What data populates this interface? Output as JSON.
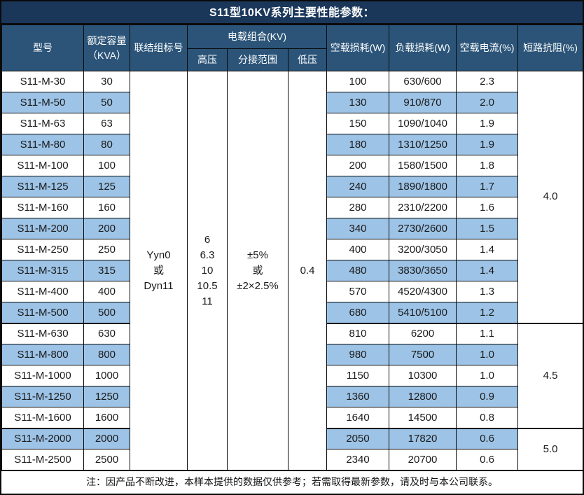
{
  "title": "S11型10KV系列主要性能参数：",
  "colors": {
    "title_bar_bg": "#1a375a",
    "header_bg": "#2b5478",
    "alt_row_bg": "#9dc3e6",
    "border": "#0a0a0a",
    "header_text": "#ffffff",
    "body_text": "#1a1a1a"
  },
  "header": {
    "model": "型号",
    "capacity": "额定容量\n（KVA）",
    "connection": "联结组标号",
    "voltage_group": "电载组合(KV)",
    "hv": "高压",
    "tap_range": "分接范围",
    "lv": "低压",
    "no_load_loss": "空载损耗(W)",
    "load_loss": "负载损耗(W)",
    "no_load_current": "空载电流(%)",
    "impedance": "短路抗阻(%)"
  },
  "merged": {
    "connection": "Yyn0\n或\nDyn11",
    "hv": "6\n6.3\n10\n10.5\n11",
    "tap_range": "±5%\n或\n±2×2.5%",
    "lv": "0.4",
    "impedance_groups": [
      {
        "value": "4.0",
        "rows": 12
      },
      {
        "value": "4.5",
        "rows": 5
      },
      {
        "value": "5.0",
        "rows": 2
      }
    ]
  },
  "rows": [
    {
      "model": "S11-M-30",
      "capacity": "30",
      "no_load_loss": "100",
      "load_loss": "630/600",
      "no_load_current": "2.3"
    },
    {
      "model": "S11-M-50",
      "capacity": "50",
      "no_load_loss": "130",
      "load_loss": "910/870",
      "no_load_current": "2.0"
    },
    {
      "model": "S11-M-63",
      "capacity": "63",
      "no_load_loss": "150",
      "load_loss": "1090/1040",
      "no_load_current": "1.9"
    },
    {
      "model": "S11-M-80",
      "capacity": "80",
      "no_load_loss": "180",
      "load_loss": "1310/1250",
      "no_load_current": "1.9"
    },
    {
      "model": "S11-M-100",
      "capacity": "100",
      "no_load_loss": "200",
      "load_loss": "1580/1500",
      "no_load_current": "1.8"
    },
    {
      "model": "S11-M-125",
      "capacity": "125",
      "no_load_loss": "240",
      "load_loss": "1890/1800",
      "no_load_current": "1.7"
    },
    {
      "model": "S11-M-160",
      "capacity": "160",
      "no_load_loss": "280",
      "load_loss": "2310/2200",
      "no_load_current": "1.6"
    },
    {
      "model": "S11-M-200",
      "capacity": "200",
      "no_load_loss": "340",
      "load_loss": "2730/2600",
      "no_load_current": "1.5"
    },
    {
      "model": "S11-M-250",
      "capacity": "250",
      "no_load_loss": "400",
      "load_loss": "3200/3050",
      "no_load_current": "1.4"
    },
    {
      "model": "S11-M-315",
      "capacity": "315",
      "no_load_loss": "480",
      "load_loss": "3830/3650",
      "no_load_current": "1.4"
    },
    {
      "model": "S11-M-400",
      "capacity": "400",
      "no_load_loss": "570",
      "load_loss": "4520/4300",
      "no_load_current": "1.3"
    },
    {
      "model": "S11-M-500",
      "capacity": "500",
      "no_load_loss": "680",
      "load_loss": "5410/5100",
      "no_load_current": "1.2"
    },
    {
      "model": "S11-M-630",
      "capacity": "630",
      "no_load_loss": "810",
      "load_loss": "6200",
      "no_load_current": "1.1"
    },
    {
      "model": "S11-M-800",
      "capacity": "800",
      "no_load_loss": "980",
      "load_loss": "7500",
      "no_load_current": "1.0"
    },
    {
      "model": "S11-M-1000",
      "capacity": "1000",
      "no_load_loss": "1150",
      "load_loss": "10300",
      "no_load_current": "1.0"
    },
    {
      "model": "S11-M-1250",
      "capacity": "1250",
      "no_load_loss": "1360",
      "load_loss": "12800",
      "no_load_current": "0.9"
    },
    {
      "model": "S11-M-1600",
      "capacity": "1600",
      "no_load_loss": "1640",
      "load_loss": "14500",
      "no_load_current": "0.8"
    },
    {
      "model": "S11-M-2000",
      "capacity": "2000",
      "no_load_loss": "2050",
      "load_loss": "17820",
      "no_load_current": "0.6"
    },
    {
      "model": "S11-M-2500",
      "capacity": "2500",
      "no_load_loss": "2340",
      "load_loss": "20700",
      "no_load_current": "0.6"
    }
  ],
  "note": "注：因产品不断改进，本样本提供的数据仅供参考；若需取得最新参数，请及时与本公司联系。"
}
